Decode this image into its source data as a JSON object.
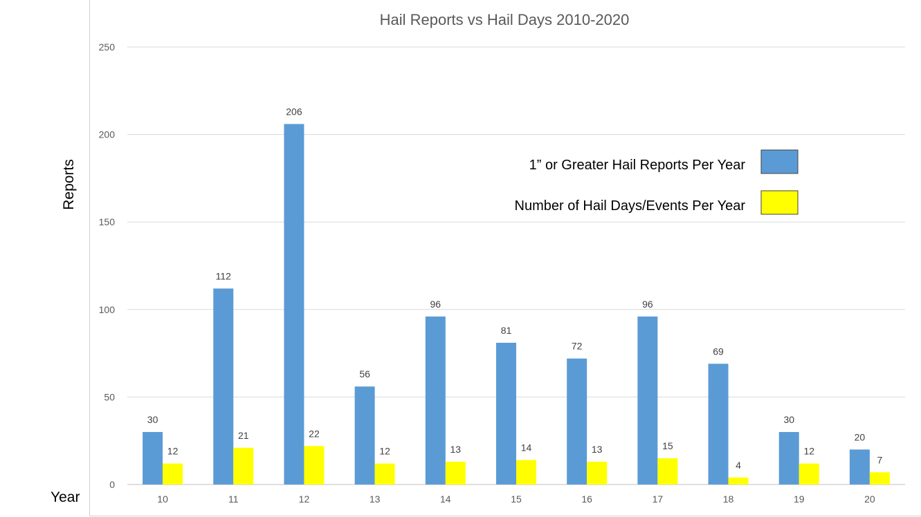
{
  "chart_data": {
    "type": "bar",
    "title": "Hail Reports vs Hail Days 2010-2020",
    "xlabel": "Year",
    "ylabel": "Reports",
    "categories": [
      "10",
      "11",
      "12",
      "13",
      "14",
      "15",
      "16",
      "17",
      "18",
      "19",
      "20"
    ],
    "ylim": [
      0,
      250
    ],
    "yticks": [
      0,
      50,
      100,
      150,
      200,
      250
    ],
    "grid": true,
    "legend_position": "upper-right",
    "series": [
      {
        "name": "1” or Greater Hail Reports Per Year",
        "color": "#5b9bd5",
        "values": [
          30,
          112,
          206,
          56,
          96,
          81,
          72,
          96,
          69,
          30,
          20
        ]
      },
      {
        "name": "Number of Hail Days/Events Per Year",
        "color": "#ffff00",
        "values": [
          12,
          21,
          22,
          12,
          13,
          14,
          13,
          15,
          4,
          12,
          7
        ]
      }
    ]
  }
}
